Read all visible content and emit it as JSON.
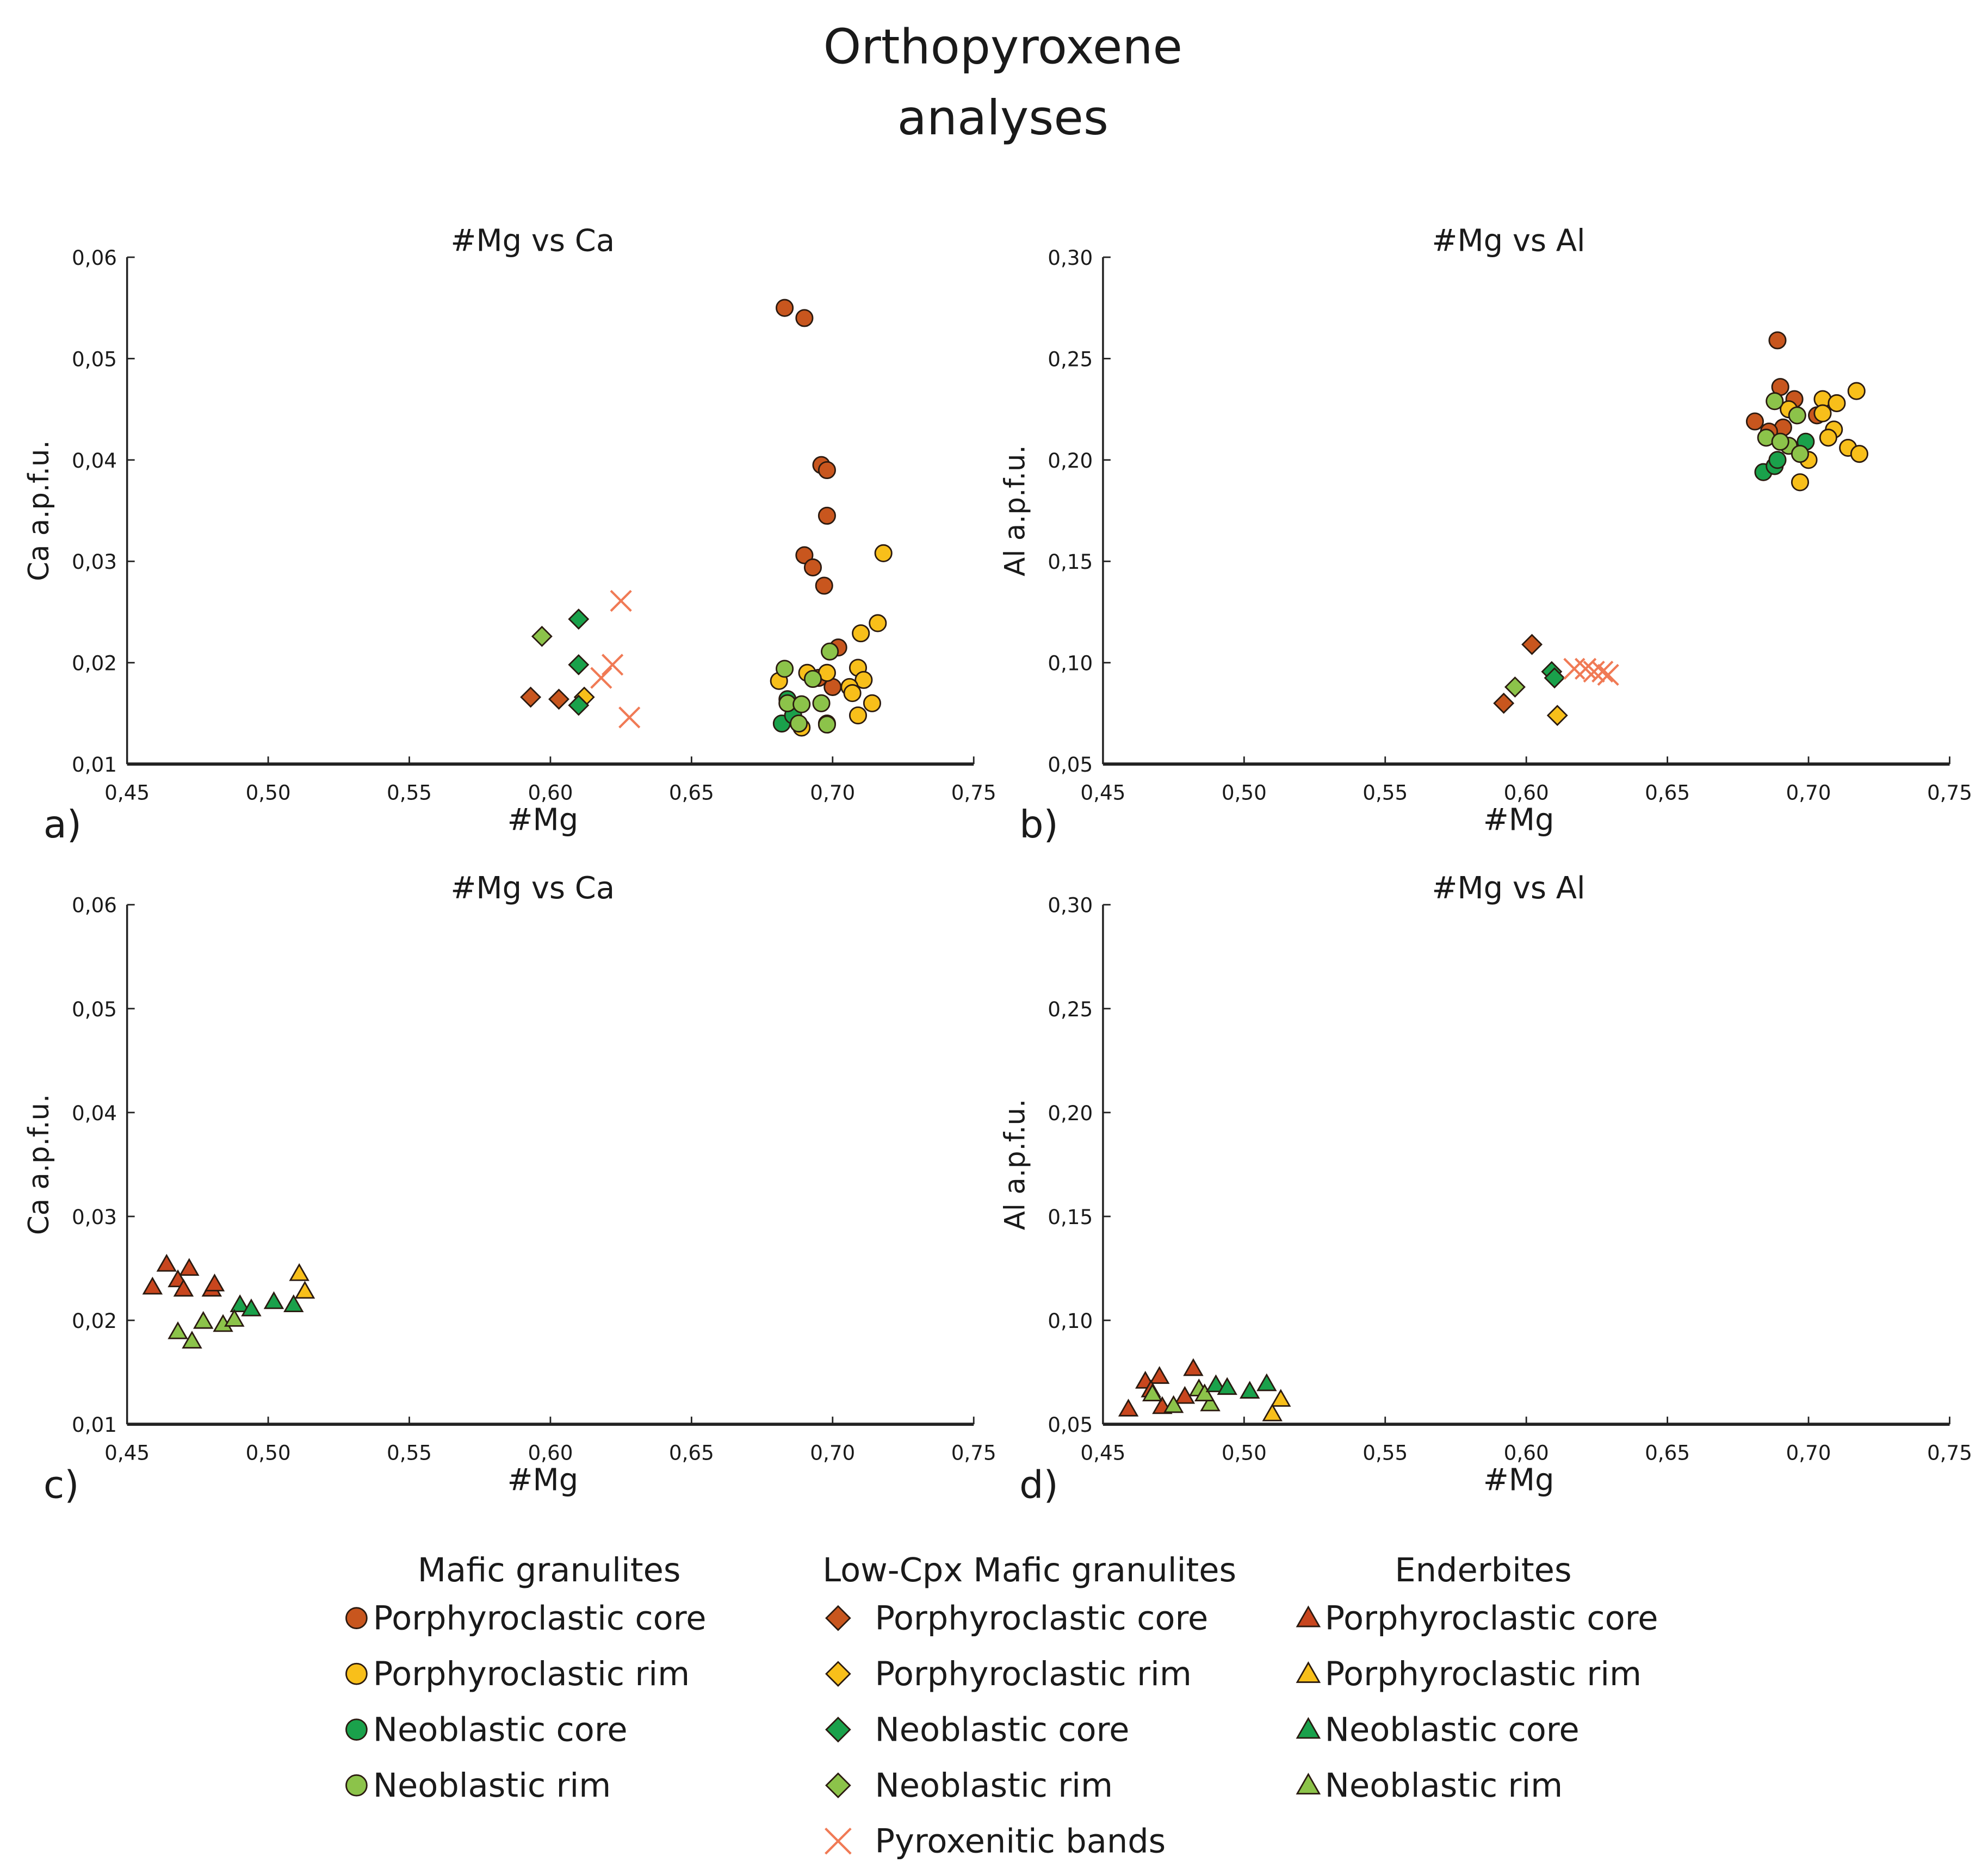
{
  "title_lines": [
    "Orthopyroxene",
    "analyses"
  ],
  "colors": {
    "porphyroclastic_core": "#c8561e",
    "porphyroclastic_rim": "#f8bf1a",
    "neoblastic_core": "#1aa14b",
    "neoblastic_rim": "#8cc34a",
    "pyroxenitic_bands": "#f07a55",
    "enderbite_core": "#c8461e"
  },
  "legend": {
    "groups": [
      {
        "title": "Mafic granulites",
        "marker": "circle",
        "items": [
          {
            "label": "Porphyroclastic core",
            "color_key": "porphyroclastic_core"
          },
          {
            "label": "Porphyroclastic rim",
            "color_key": "porphyroclastic_rim"
          },
          {
            "label": "Neoblastic core",
            "color_key": "neoblastic_core"
          },
          {
            "label": "Neoblastic rim",
            "color_key": "neoblastic_rim"
          }
        ]
      },
      {
        "title": "Low-Cpx Mafic granulites",
        "marker": "diamond",
        "items": [
          {
            "label": "Porphyroclastic core",
            "color_key": "porphyroclastic_core"
          },
          {
            "label": "Porphyroclastic rim",
            "color_key": "porphyroclastic_rim"
          },
          {
            "label": "Neoblastic core",
            "color_key": "neoblastic_core"
          },
          {
            "label": "Neoblastic rim",
            "color_key": "neoblastic_rim"
          },
          {
            "label": "Pyroxenitic bands",
            "color_key": "pyroxenitic_bands",
            "marker": "x"
          }
        ]
      },
      {
        "title": "Enderbites",
        "marker": "triangle",
        "items": [
          {
            "label": "Porphyroclastic core",
            "color_key": "enderbite_core"
          },
          {
            "label": "Porphyroclastic rim",
            "color_key": "porphyroclastic_rim"
          },
          {
            "label": "Neoblastic core",
            "color_key": "neoblastic_core"
          },
          {
            "label": "Neoblastic rim",
            "color_key": "neoblastic_rim"
          }
        ]
      }
    ]
  },
  "chart_data": [
    {
      "type": "scatter",
      "panel_label": "a)",
      "title": "#Mg vs Ca",
      "xlabel": "#Mg",
      "ylabel": "Ca a.p.f.u.",
      "xlim": [
        0.45,
        0.75
      ],
      "ylim": [
        0.01,
        0.06
      ],
      "xticks": [
        "0,45",
        "0,50",
        "0,55",
        "0,60",
        "0,65",
        "0,70",
        "0,75"
      ],
      "yticks": [
        "0,01",
        "0,02",
        "0,03",
        "0,04",
        "0,05",
        "0,06"
      ],
      "grid": false,
      "series": [
        {
          "group": "Mafic granulites",
          "name": "Porphyroclastic core",
          "marker": "circle",
          "color_key": "porphyroclastic_core",
          "points": [
            [
              0.683,
              0.055
            ],
            [
              0.69,
              0.054
            ],
            [
              0.696,
              0.0395
            ],
            [
              0.698,
              0.039
            ],
            [
              0.698,
              0.0345
            ],
            [
              0.69,
              0.0306
            ],
            [
              0.693,
              0.0294
            ],
            [
              0.697,
              0.0276
            ],
            [
              0.702,
              0.0215
            ],
            [
              0.695,
              0.0185
            ],
            [
              0.7,
              0.0176
            ],
            [
              0.698,
              0.014
            ]
          ]
        },
        {
          "group": "Mafic granulites",
          "name": "Porphyroclastic rim",
          "marker": "circle",
          "color_key": "porphyroclastic_rim",
          "points": [
            [
              0.718,
              0.0308
            ],
            [
              0.716,
              0.0239
            ],
            [
              0.71,
              0.0229
            ],
            [
              0.709,
              0.0195
            ],
            [
              0.711,
              0.0183
            ],
            [
              0.714,
              0.016
            ],
            [
              0.709,
              0.0148
            ],
            [
              0.681,
              0.0182
            ],
            [
              0.691,
              0.019
            ],
            [
              0.698,
              0.019
            ],
            [
              0.706,
              0.0176
            ],
            [
              0.689,
              0.0136
            ],
            [
              0.707,
              0.017
            ]
          ]
        },
        {
          "group": "Mafic granulites",
          "name": "Neoblastic core",
          "marker": "circle",
          "color_key": "neoblastic_core",
          "points": [
            [
              0.682,
              0.014
            ],
            [
              0.686,
              0.0148
            ],
            [
              0.684,
              0.0164
            ]
          ]
        },
        {
          "group": "Mafic granulites",
          "name": "Neoblastic rim",
          "marker": "circle",
          "color_key": "neoblastic_rim",
          "points": [
            [
              0.683,
              0.0194
            ],
            [
              0.699,
              0.0211
            ],
            [
              0.684,
              0.016
            ],
            [
              0.689,
              0.0159
            ],
            [
              0.696,
              0.016
            ],
            [
              0.688,
              0.014
            ],
            [
              0.698,
              0.0139
            ],
            [
              0.693,
              0.0184
            ]
          ]
        },
        {
          "group": "Low-Cpx Mafic granulites",
          "name": "Porphyroclastic core",
          "marker": "diamond",
          "color_key": "porphyroclastic_core",
          "points": [
            [
              0.593,
              0.0166
            ],
            [
              0.603,
              0.0164
            ]
          ]
        },
        {
          "group": "Low-Cpx Mafic granulites",
          "name": "Porphyroclastic rim",
          "marker": "diamond",
          "color_key": "porphyroclastic_rim",
          "points": [
            [
              0.612,
              0.0166
            ]
          ]
        },
        {
          "group": "Low-Cpx Mafic granulites",
          "name": "Neoblastic core",
          "marker": "diamond",
          "color_key": "neoblastic_core",
          "points": [
            [
              0.61,
              0.0243
            ],
            [
              0.61,
              0.0198
            ],
            [
              0.61,
              0.0158
            ]
          ]
        },
        {
          "group": "Low-Cpx Mafic granulites",
          "name": "Neoblastic rim",
          "marker": "diamond",
          "color_key": "neoblastic_rim",
          "points": [
            [
              0.597,
              0.0226
            ]
          ]
        },
        {
          "group": "Low-Cpx Mafic granulites",
          "name": "Pyroxenitic bands",
          "marker": "x",
          "color_key": "pyroxenitic_bands",
          "points": [
            [
              0.625,
              0.0261
            ],
            [
              0.622,
              0.0198
            ],
            [
              0.618,
              0.0185
            ],
            [
              0.628,
              0.0146
            ]
          ]
        }
      ]
    },
    {
      "type": "scatter",
      "panel_label": "b)",
      "title": "#Mg vs Al",
      "xlabel": "#Mg",
      "ylabel": "Al a.p.f.u.",
      "xlim": [
        0.45,
        0.75
      ],
      "ylim": [
        0.05,
        0.3
      ],
      "xticks": [
        "0,45",
        "0,50",
        "0,55",
        "0,60",
        "0,65",
        "0,70",
        "0,75"
      ],
      "yticks": [
        "0,05",
        "0,10",
        "0,15",
        "0,20",
        "0,25",
        "0,30"
      ],
      "grid": false,
      "series": [
        {
          "group": "Mafic granulites",
          "name": "Porphyroclastic core",
          "marker": "circle",
          "color_key": "porphyroclastic_core",
          "points": [
            [
              0.689,
              0.259
            ],
            [
              0.69,
              0.236
            ],
            [
              0.695,
              0.23
            ],
            [
              0.681,
              0.219
            ],
            [
              0.691,
              0.216
            ],
            [
              0.703,
              0.222
            ],
            [
              0.686,
              0.214
            ]
          ]
        },
        {
          "group": "Mafic granulites",
          "name": "Porphyroclastic rim",
          "marker": "circle",
          "color_key": "porphyroclastic_rim",
          "points": [
            [
              0.717,
              0.234
            ],
            [
              0.705,
              0.23
            ],
            [
              0.71,
              0.228
            ],
            [
              0.705,
              0.223
            ],
            [
              0.709,
              0.215
            ],
            [
              0.707,
              0.211
            ],
            [
              0.714,
              0.206
            ],
            [
              0.718,
              0.203
            ],
            [
              0.7,
              0.2
            ],
            [
              0.697,
              0.189
            ],
            [
              0.693,
              0.225
            ]
          ]
        },
        {
          "group": "Mafic granulites",
          "name": "Neoblastic core",
          "marker": "circle",
          "color_key": "neoblastic_core",
          "points": [
            [
              0.684,
              0.194
            ],
            [
              0.688,
              0.197
            ],
            [
              0.689,
              0.2
            ],
            [
              0.699,
              0.209
            ]
          ]
        },
        {
          "group": "Mafic granulites",
          "name": "Neoblastic rim",
          "marker": "circle",
          "color_key": "neoblastic_rim",
          "points": [
            [
              0.688,
              0.229
            ],
            [
              0.685,
              0.211
            ],
            [
              0.696,
              0.222
            ],
            [
              0.693,
              0.207
            ],
            [
              0.697,
              0.203
            ],
            [
              0.69,
              0.209
            ]
          ]
        },
        {
          "group": "Low-Cpx Mafic granulites",
          "name": "Porphyroclastic core",
          "marker": "diamond",
          "color_key": "porphyroclastic_core",
          "points": [
            [
              0.602,
              0.109
            ],
            [
              0.592,
              0.08
            ]
          ]
        },
        {
          "group": "Low-Cpx Mafic granulites",
          "name": "Porphyroclastic rim",
          "marker": "diamond",
          "color_key": "porphyroclastic_rim",
          "points": [
            [
              0.611,
              0.074
            ]
          ]
        },
        {
          "group": "Low-Cpx Mafic granulites",
          "name": "Neoblastic core",
          "marker": "diamond",
          "color_key": "neoblastic_core",
          "points": [
            [
              0.609,
              0.0956
            ],
            [
              0.61,
              0.0925
            ]
          ]
        },
        {
          "group": "Low-Cpx Mafic granulites",
          "name": "Neoblastic rim",
          "marker": "diamond",
          "color_key": "neoblastic_rim",
          "points": [
            [
              0.596,
              0.088
            ]
          ]
        },
        {
          "group": "Low-Cpx Mafic granulites",
          "name": "Pyroxenitic bands",
          "marker": "x",
          "color_key": "pyroxenitic_bands",
          "points": [
            [
              0.617,
              0.097
            ],
            [
              0.621,
              0.097
            ],
            [
              0.624,
              0.0956
            ],
            [
              0.627,
              0.0956
            ],
            [
              0.629,
              0.094
            ]
          ]
        }
      ]
    },
    {
      "type": "scatter",
      "panel_label": "c)",
      "title": "#Mg vs Ca",
      "xlabel": "#Mg",
      "ylabel": "Ca a.p.f.u.",
      "xlim": [
        0.45,
        0.75
      ],
      "ylim": [
        0.01,
        0.06
      ],
      "xticks": [
        "0,45",
        "0,50",
        "0,55",
        "0,60",
        "0,65",
        "0,70",
        "0,75"
      ],
      "yticks": [
        "0,01",
        "0,02",
        "0,03",
        "0,04",
        "0,05",
        "0,06"
      ],
      "grid": false,
      "series": [
        {
          "group": "Enderbites",
          "name": "Porphyroclastic core",
          "marker": "triangle",
          "color_key": "enderbite_core",
          "points": [
            [
              0.464,
              0.0254
            ],
            [
              0.472,
              0.025
            ],
            [
              0.468,
              0.0239
            ],
            [
              0.459,
              0.0232
            ],
            [
              0.47,
              0.023
            ],
            [
              0.48,
              0.023
            ],
            [
              0.481,
              0.0235
            ]
          ]
        },
        {
          "group": "Enderbites",
          "name": "Porphyroclastic rim",
          "marker": "triangle",
          "color_key": "porphyroclastic_rim",
          "points": [
            [
              0.511,
              0.0245
            ],
            [
              0.513,
              0.0228
            ]
          ]
        },
        {
          "group": "Enderbites",
          "name": "Neoblastic core",
          "marker": "triangle",
          "color_key": "neoblastic_core",
          "points": [
            [
              0.49,
              0.0215
            ],
            [
              0.494,
              0.0211
            ],
            [
              0.502,
              0.0218
            ],
            [
              0.509,
              0.0215
            ]
          ]
        },
        {
          "group": "Enderbites",
          "name": "Neoblastic rim",
          "marker": "triangle",
          "color_key": "neoblastic_rim",
          "points": [
            [
              0.468,
              0.0189
            ],
            [
              0.473,
              0.018
            ],
            [
              0.477,
              0.0199
            ],
            [
              0.484,
              0.0196
            ],
            [
              0.488,
              0.0201
            ]
          ]
        }
      ]
    },
    {
      "type": "scatter",
      "panel_label": "d)",
      "title": "#Mg vs Al",
      "xlabel": "#Mg",
      "ylabel": "Al a.p.f.u.",
      "xlim": [
        0.45,
        0.75
      ],
      "ylim": [
        0.05,
        0.3
      ],
      "xticks": [
        "0,45",
        "0,50",
        "0,55",
        "0,60",
        "0,65",
        "0,70",
        "0,75"
      ],
      "yticks": [
        "0,05",
        "0,10",
        "0,15",
        "0,20",
        "0,25",
        "0,30"
      ],
      "grid": false,
      "series": [
        {
          "group": "Enderbites",
          "name": "Porphyroclastic core",
          "marker": "triangle",
          "color_key": "enderbite_core",
          "points": [
            [
              0.459,
              0.0573
            ],
            [
              0.465,
              0.0707
            ],
            [
              0.47,
              0.073
            ],
            [
              0.467,
              0.0665
            ],
            [
              0.482,
              0.0768
            ],
            [
              0.471,
              0.0585
            ],
            [
              0.479,
              0.0634
            ]
          ]
        },
        {
          "group": "Enderbites",
          "name": "Neoblastic rim",
          "marker": "triangle",
          "color_key": "neoblastic_rim",
          "points": [
            [
              0.4675,
              0.0646
            ],
            [
              0.475,
              0.059
            ],
            [
              0.484,
              0.067
            ],
            [
              0.488,
              0.0598
            ],
            [
              0.486,
              0.0646
            ]
          ]
        },
        {
          "group": "Enderbites",
          "name": "Neoblastic core",
          "marker": "triangle",
          "color_key": "neoblastic_core",
          "points": [
            [
              0.49,
              0.069
            ],
            [
              0.494,
              0.0677
            ],
            [
              0.502,
              0.0659
            ],
            [
              0.508,
              0.0695
            ]
          ]
        },
        {
          "group": "Enderbites",
          "name": "Porphyroclastic rim",
          "marker": "triangle",
          "color_key": "porphyroclastic_rim",
          "points": [
            [
              0.513,
              0.062
            ],
            [
              0.51,
              0.055
            ]
          ]
        }
      ]
    }
  ]
}
